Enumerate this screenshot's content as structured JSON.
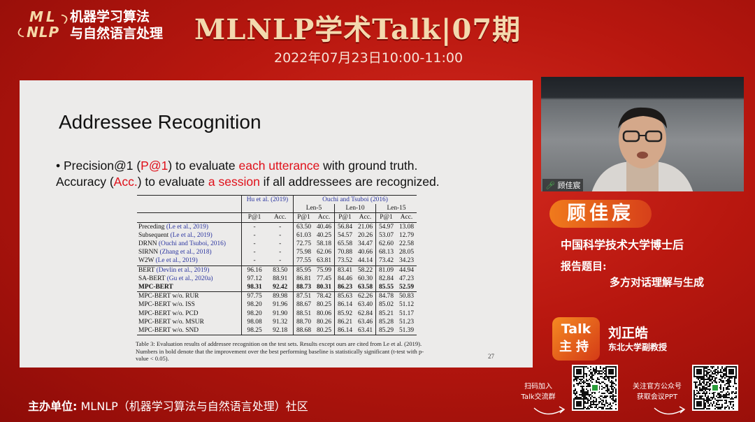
{
  "header": {
    "logo_mark_line1": "ML",
    "logo_mark_line2": "NLP",
    "logo_text_line1": "机器学习算法",
    "logo_text_line2": "与自然语言处理",
    "title": "MLNLP学术Talk|07期",
    "date": "2022年07月23日10:00-11:00"
  },
  "slide": {
    "title": "Addressee Recognition",
    "bullet_line1": {
      "part1": "• Precision@1 (",
      "part2": "P@1",
      "part3": ") to evaluate ",
      "part4": "each utterance",
      "part5": " with ground truth."
    },
    "bullet_line2": {
      "part1": "Accuracy (",
      "part2": "Acc.",
      "part3": ") to evaluate ",
      "part4": "a session",
      "part5": " if all addressees are recognized."
    },
    "table": {
      "group_hu": "Hu et al. (2019)",
      "group_ouchi": "Ouchi and Tsuboi (2016)",
      "len5": "Len-5",
      "len10": "Len-10",
      "len15": "Len-15",
      "col_p1": "P@1",
      "col_acc": "Acc.",
      "rows": [
        {
          "name": "Preceding",
          "cite": "(Le et al., 2019)",
          "v": [
            "-",
            "-",
            "63.50",
            "40.46",
            "56.84",
            "21.06",
            "54.97",
            "13.08"
          ]
        },
        {
          "name": "Subsequent",
          "cite": "(Le et al., 2019)",
          "v": [
            "-",
            "-",
            "61.03",
            "40.25",
            "54.57",
            "20.26",
            "53.07",
            "12.79"
          ]
        },
        {
          "name": "DRNN",
          "cite": "(Ouchi and Tsuboi, 2016)",
          "v": [
            "-",
            "-",
            "72.75",
            "58.18",
            "65.58",
            "34.47",
            "62.60",
            "22.58"
          ]
        },
        {
          "name": "SIRNN",
          "cite": "(Zhang et al., 2018)",
          "v": [
            "-",
            "-",
            "75.98",
            "62.06",
            "70.88",
            "40.66",
            "68.13",
            "28.05"
          ]
        },
        {
          "name": "W2W",
          "cite": "(Le et al., 2019)",
          "v": [
            "-",
            "-",
            "77.55",
            "63.81",
            "73.52",
            "44.14",
            "73.42",
            "34.23"
          ]
        },
        {
          "name": "BERT",
          "cite": "(Devlin et al., 2019)",
          "v": [
            "96.16",
            "83.50",
            "85.95",
            "75.99",
            "83.41",
            "58.22",
            "81.09",
            "44.94"
          ]
        },
        {
          "name": "SA-BERT",
          "cite": "(Gu et al., 2020a)",
          "v": [
            "97.12",
            "88.91",
            "86.81",
            "77.45",
            "84.46",
            "60.30",
            "82.84",
            "47.23"
          ]
        },
        {
          "name": "MPC-BERT",
          "cite": "",
          "v": [
            "98.31",
            "92.42",
            "88.73",
            "80.31",
            "86.23",
            "63.58",
            "85.55",
            "52.59"
          ]
        },
        {
          "name": "MPC-BERT w/o. RUR",
          "cite": "",
          "v": [
            "97.75",
            "89.98",
            "87.51",
            "78.42",
            "85.63",
            "62.26",
            "84.78",
            "50.83"
          ]
        },
        {
          "name": "MPC-BERT w/o. ISS",
          "cite": "",
          "v": [
            "98.20",
            "91.96",
            "88.67",
            "80.25",
            "86.14",
            "63.40",
            "85.02",
            "51.12"
          ]
        },
        {
          "name": "MPC-BERT w/o. PCD",
          "cite": "",
          "v": [
            "98.20",
            "91.90",
            "88.51",
            "80.06",
            "85.92",
            "62.84",
            "85.21",
            "51.17"
          ]
        },
        {
          "name": "MPC-BERT w/o. MSUR",
          "cite": "",
          "v": [
            "98.08",
            "91.32",
            "88.70",
            "80.26",
            "86.21",
            "63.46",
            "85.28",
            "51.23"
          ]
        },
        {
          "name": "MPC-BERT w/o. SND",
          "cite": "",
          "v": [
            "98.25",
            "92.18",
            "88.68",
            "80.25",
            "86.14",
            "63.41",
            "85.29",
            "51.39"
          ]
        }
      ]
    },
    "caption": "Table 3: Evaluation results of addressee recognition on the test sets. Results except ours are cited from Le et al. (2019). Numbers in bold denote that the improvement over the best performing baseline is statistically significant (t-test with p-value < 0.05).",
    "page_number": "27"
  },
  "video": {
    "speaker_label": "顾佳宸"
  },
  "speaker": {
    "name": "顾佳宸",
    "affiliation": "中国科学技术大学博士后",
    "topic_label": "报告题目:",
    "topic": "多方对话理解与生成"
  },
  "host": {
    "badge_line1": "Talk",
    "badge_line2": "主持",
    "name": "刘正皓",
    "affiliation": "东北大学副教授"
  },
  "footer": {
    "organizer_label": "主办单位:",
    "organizer": "MLNLP（机器学习算法与自然语言处理）社区",
    "qr1_line1": "扫码加入",
    "qr1_line2": "Talk交流群",
    "qr2_line1": "关注官方公众号",
    "qr2_line2": "获取会议PPT"
  },
  "colors": {
    "background": "#b8170f",
    "title_gold": "#f3d9ae",
    "slide_bg": "#ecebea",
    "highlight_red": "#e0101a",
    "cite_blue": "#2b35a0",
    "plate_orange": "#f07a1c"
  }
}
